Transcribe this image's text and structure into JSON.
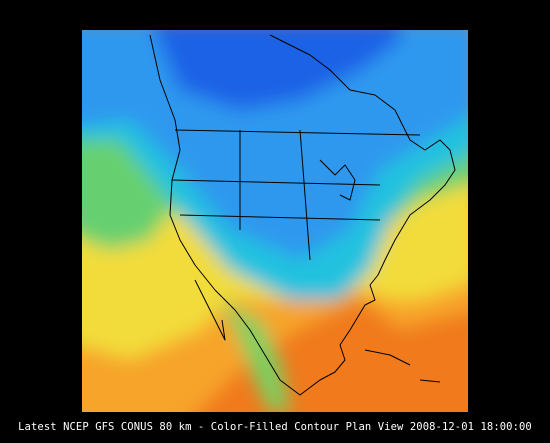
{
  "caption": "Latest NCEP GFS CONUS 80 km - Color-Filled Contour Plan View 2008-12-01 18:00:00"
}
